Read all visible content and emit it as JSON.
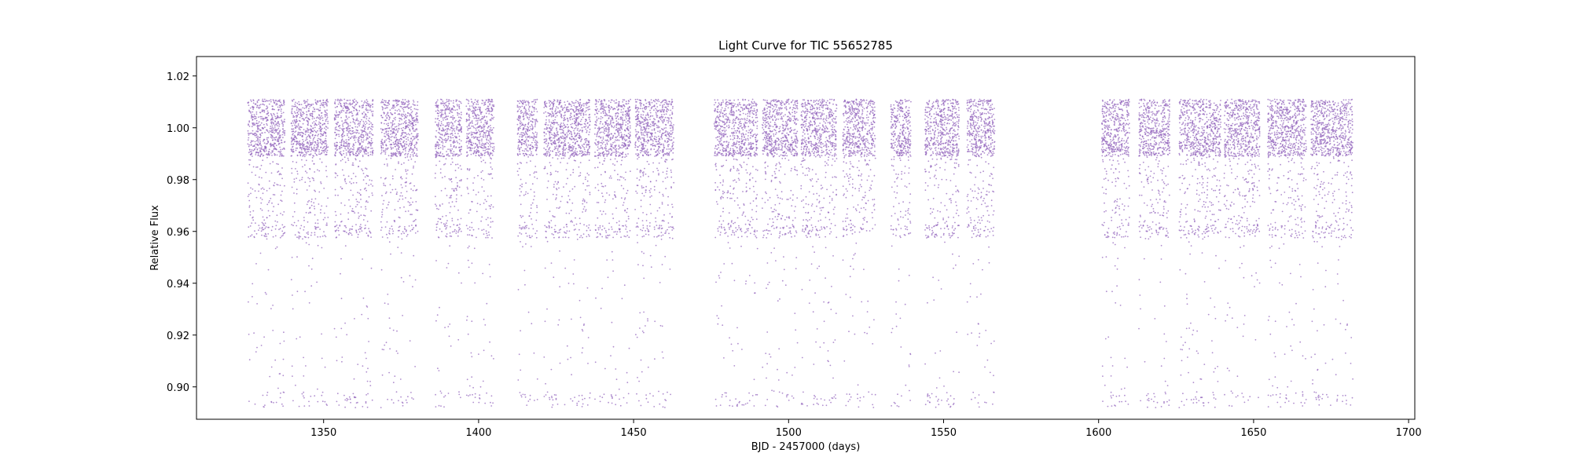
{
  "chart_data": {
    "type": "scatter",
    "title": "Light Curve for TIC 55652785",
    "xlabel": "BJD - 2457000 (days)",
    "ylabel": "Relative Flux",
    "xlim": [
      1309,
      1702
    ],
    "ylim": [
      0.8875,
      1.0275
    ],
    "xticks": [
      1350,
      1400,
      1450,
      1500,
      1550,
      1600,
      1650,
      1700
    ],
    "xtick_labels": [
      "1350",
      "1400",
      "1450",
      "1500",
      "1550",
      "1600",
      "1650",
      "1700"
    ],
    "yticks": [
      0.9,
      0.92,
      0.94,
      0.96,
      0.98,
      1.0,
      1.02
    ],
    "ytick_labels": [
      "0.90",
      "0.92",
      "0.94",
      "0.96",
      "0.98",
      "1.00",
      "1.02"
    ],
    "grid": false,
    "marker_color": "#9467bd",
    "baseline_flux": 1.0,
    "eclipse_depths": [
      0.96,
      0.895
    ],
    "observed_segments": [
      {
        "start": 1325.5,
        "end": 1337.5
      },
      {
        "start": 1339.5,
        "end": 1351.5
      },
      {
        "start": 1353.5,
        "end": 1366.0
      },
      {
        "start": 1368.5,
        "end": 1380.5
      },
      {
        "start": 1386.0,
        "end": 1394.5
      },
      {
        "start": 1396.0,
        "end": 1405.0
      },
      {
        "start": 1412.5,
        "end": 1419.0
      },
      {
        "start": 1421.0,
        "end": 1436.0
      },
      {
        "start": 1437.5,
        "end": 1449.0
      },
      {
        "start": 1450.5,
        "end": 1463.0
      },
      {
        "start": 1476.0,
        "end": 1490.0
      },
      {
        "start": 1491.5,
        "end": 1503.0
      },
      {
        "start": 1504.0,
        "end": 1515.5
      },
      {
        "start": 1517.5,
        "end": 1528.0
      },
      {
        "start": 1533.0,
        "end": 1539.5
      },
      {
        "start": 1544.0,
        "end": 1555.0
      },
      {
        "start": 1557.5,
        "end": 1566.5
      },
      {
        "start": 1601.0,
        "end": 1610.0
      },
      {
        "start": 1613.0,
        "end": 1623.0
      },
      {
        "start": 1626.0,
        "end": 1639.5
      },
      {
        "start": 1640.5,
        "end": 1652.0
      },
      {
        "start": 1654.5,
        "end": 1667.0
      },
      {
        "start": 1668.5,
        "end": 1682.0
      }
    ]
  }
}
